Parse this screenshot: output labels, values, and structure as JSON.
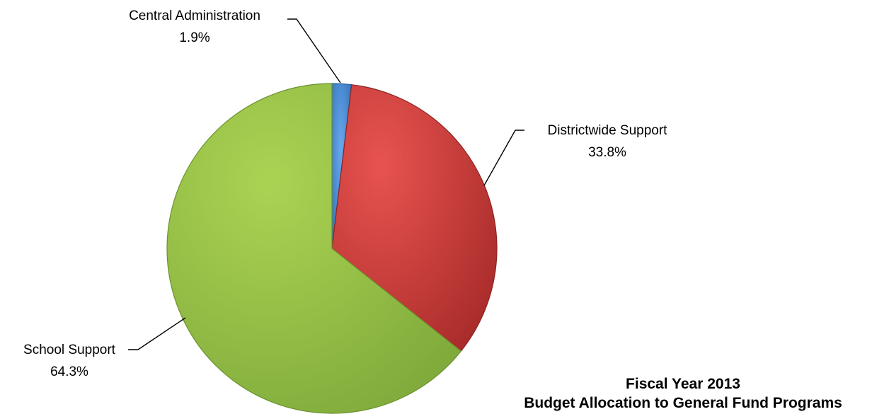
{
  "chart_data": {
    "type": "pie",
    "title_lines": [
      "Fiscal Year 2013",
      "Budget Allocation to General Fund Programs"
    ],
    "legend": "none",
    "slices": [
      {
        "label": "Central Administration",
        "value": 1.9,
        "value_label": "1.9%",
        "color": "#3f86d6"
      },
      {
        "label": "Districtwide Support",
        "value": 33.8,
        "value_label": "33.8%",
        "color": "#d63c3a"
      },
      {
        "label": "School Support",
        "value": 64.3,
        "value_label": "64.3%",
        "color": "#9cc846"
      }
    ]
  }
}
